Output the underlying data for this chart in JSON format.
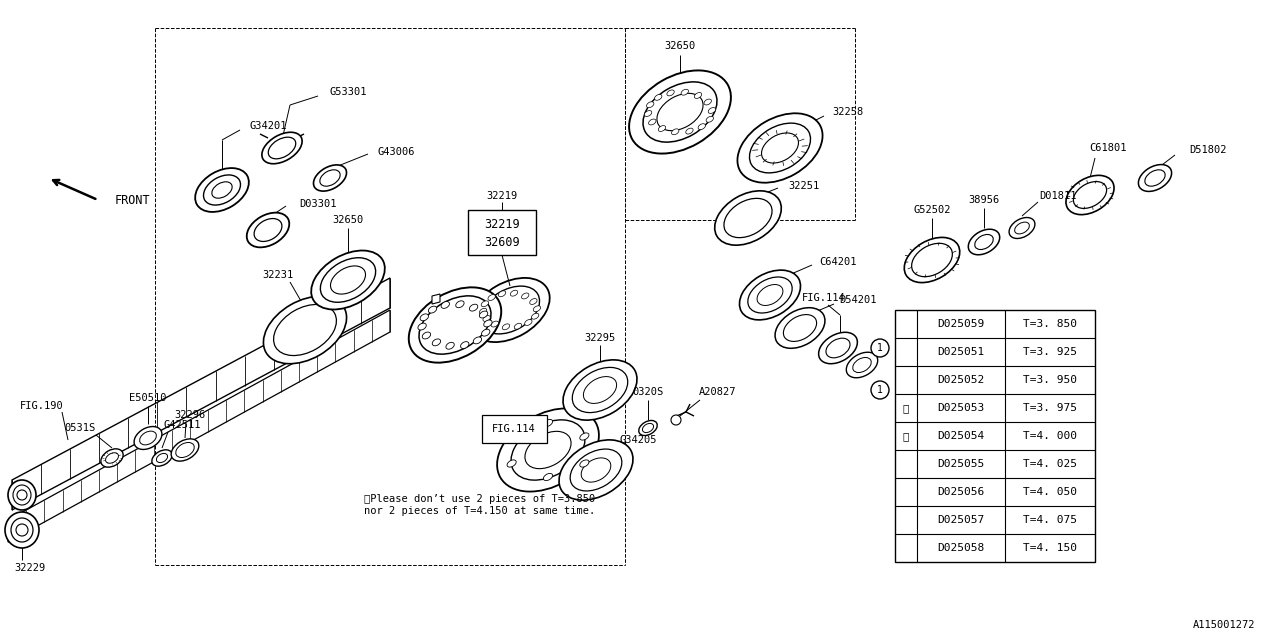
{
  "bg_color": "#ffffff",
  "line_color": "#000000",
  "fig_width": 12.8,
  "fig_height": 6.4,
  "table_data": [
    [
      "D025059",
      "T=3. 850"
    ],
    [
      "D025051",
      "T=3. 925"
    ],
    [
      "D025052",
      "T=3. 950"
    ],
    [
      "D025053",
      "T=3. 975"
    ],
    [
      "D025054",
      "T=4. 000"
    ],
    [
      "D025055",
      "T=4. 025"
    ],
    [
      "D025056",
      "T=4. 050"
    ],
    [
      "D025057",
      "T=4. 075"
    ],
    [
      "D025058",
      "T=4. 150"
    ]
  ],
  "note_text": "※Please don’t use 2 pieces of T=3.850\nnor 2 pieces of T=4.150 at same time.",
  "callout_id": "A115001272"
}
